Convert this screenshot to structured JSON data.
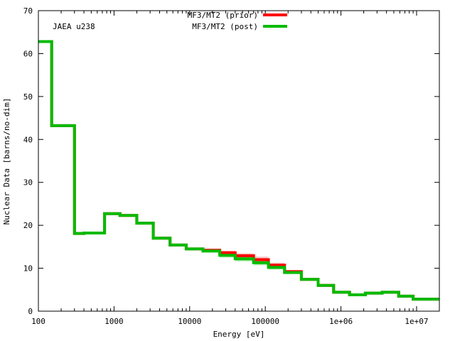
{
  "chart_data": {
    "type": "line",
    "step": true,
    "xlabel": "Energy [eV]",
    "ylabel": "Nuclear Data [barns/no-dim]",
    "annotation": "JAEA u238",
    "xscale": "log",
    "xlim": [
      100,
      20000000
    ],
    "ylim": [
      0,
      70
    ],
    "x_ticks": [
      100,
      1000,
      10000,
      100000,
      1000000,
      10000000
    ],
    "x_tick_labels": [
      "100",
      "1000",
      "10000",
      "100000",
      "1e+06",
      "1e+07"
    ],
    "y_ticks": [
      0,
      10,
      20,
      30,
      40,
      50,
      60,
      70
    ],
    "y_tick_labels": [
      "0",
      "10",
      "20",
      "30",
      "40",
      "50",
      "60",
      "70"
    ],
    "grid": false,
    "legend_position": "top-center",
    "bin_edges": [
      100,
      150,
      300,
      400,
      750,
      1200,
      2000,
      3300,
      5500,
      9000,
      15000,
      25000,
      40000,
      70000,
      110000,
      180000,
      300000,
      500000,
      800000,
      1300000,
      2100000,
      3500000,
      5800000,
      9000000,
      20000000
    ],
    "series": [
      {
        "name": "MF3/MT2 (prior)",
        "color": "#ff0000",
        "band_color": "#f4b9b9",
        "values": [
          62.8,
          43.2,
          18.1,
          18.2,
          22.7,
          22.3,
          20.5,
          17.0,
          15.4,
          14.5,
          14.2,
          13.6,
          12.9,
          12.0,
          10.7,
          9.2,
          7.4,
          6.0,
          4.4,
          3.8,
          4.2,
          4.4,
          3.5,
          2.8
        ],
        "band_width": [
          0,
          0,
          0,
          0,
          0,
          0,
          0,
          0,
          0,
          0,
          0.3,
          0.5,
          0.6,
          0.7,
          0.6,
          0.4,
          0.2,
          0.1,
          0,
          0,
          0,
          0,
          0,
          0
        ]
      },
      {
        "name": "MF3/MT2 (post)",
        "color": "#00bb00",
        "band_color": "#9ee89e",
        "values": [
          62.8,
          43.2,
          18.1,
          18.2,
          22.7,
          22.3,
          20.5,
          17.0,
          15.4,
          14.5,
          14.0,
          13.0,
          12.2,
          11.3,
          10.2,
          9.0,
          7.4,
          6.0,
          4.4,
          3.8,
          4.2,
          4.4,
          3.5,
          2.8
        ],
        "band_width": [
          0,
          0,
          0,
          0,
          0,
          0,
          0,
          0,
          0,
          0,
          0.3,
          0.5,
          0.6,
          0.6,
          0.5,
          0.3,
          0.2,
          0.1,
          0,
          0,
          0,
          0,
          0,
          0
        ]
      }
    ]
  }
}
